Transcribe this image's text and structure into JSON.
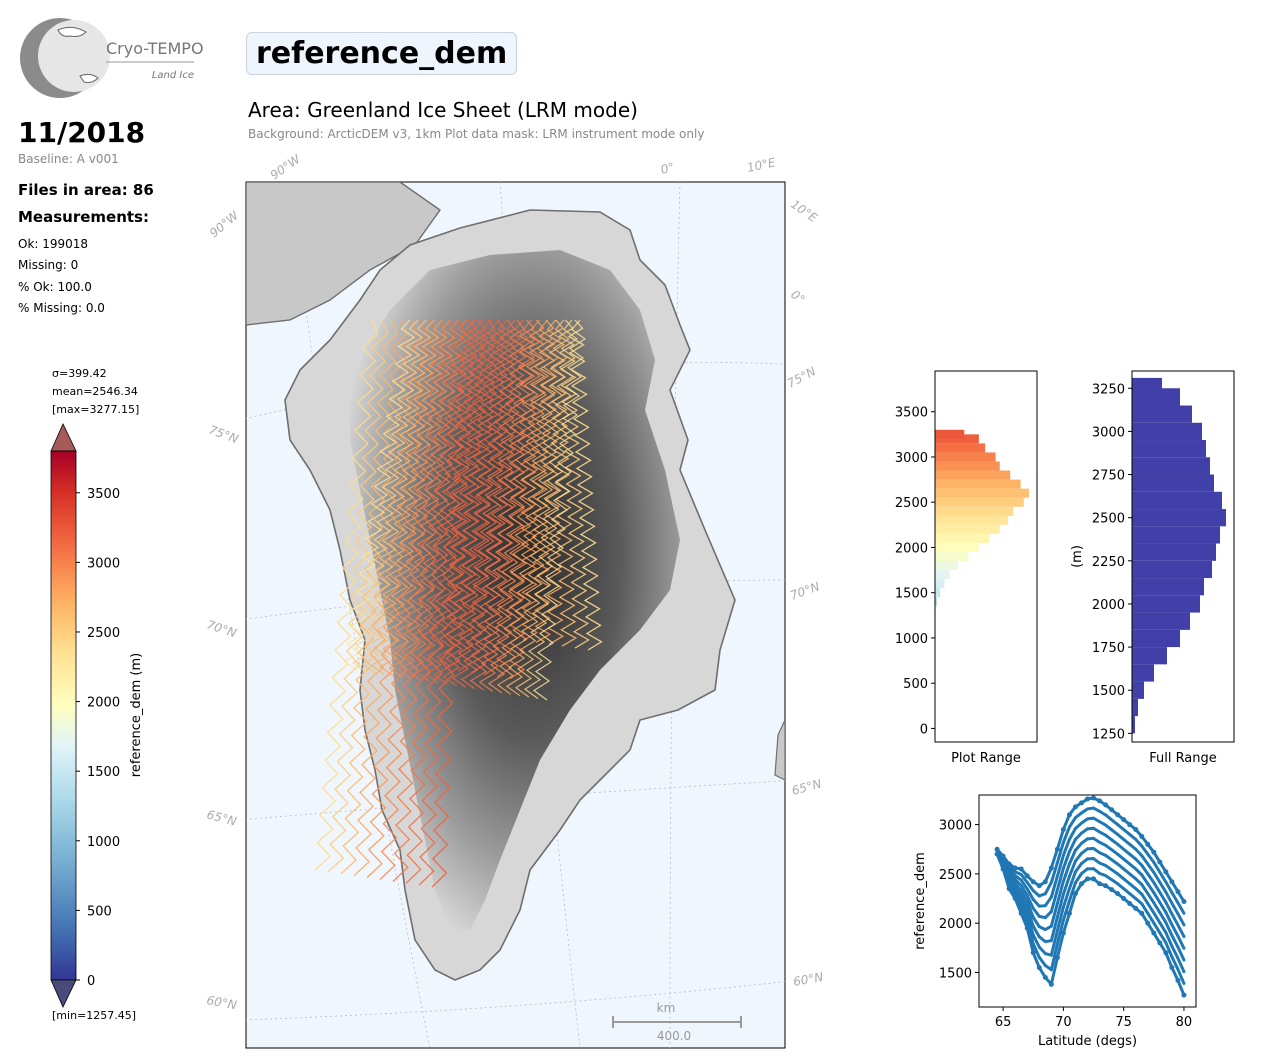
{
  "logo": {
    "name": "Cryo-TEMPO",
    "subtitle": "Land Ice"
  },
  "header": {
    "period": "11/2018",
    "baseline": "Baseline: A v001",
    "parameter": "reference_dem"
  },
  "stats": {
    "files": "Files in area: 86",
    "measurements_title": "Measurements:",
    "ok": "Ok: 199018",
    "missing": "Missing: 0",
    "pct_ok": "% Ok: 100.0",
    "pct_missing": "% Missing: 0.0"
  },
  "area": {
    "title": "Area: Greenland Ice Sheet (LRM mode)",
    "subtitle": "Background: ArcticDEM v3, 1km   Plot data mask: LRM instrument mode only"
  },
  "colorbar": {
    "sigma": "σ=399.42",
    "mean": "mean=2546.34",
    "max": "[max=3277.15]",
    "min": "[min=1257.45]",
    "label": "reference_dem (m)",
    "ticks": [
      "0",
      "500",
      "1000",
      "1500",
      "2000",
      "2500",
      "3000",
      "3500"
    ],
    "range": [
      0,
      3800
    ],
    "colormap": "RdYlBu_r"
  },
  "map": {
    "lat_labels": [
      "75°N",
      "70°N",
      "65°N",
      "60°N",
      "75°N",
      "70°N",
      "65°N",
      "60°N"
    ],
    "lon_labels": [
      "90°W",
      "90°W",
      "0°",
      "10°E",
      "10°E",
      "0°"
    ],
    "scalebar_unit": "km",
    "scalebar_value": "400.0",
    "ocean_color": "#eff6fd",
    "land_color": "#8a8a8a",
    "coast_color": "#6e6e6e"
  },
  "chart_data": [
    {
      "type": "bar",
      "orientation": "horizontal",
      "title": "",
      "xlabel": "Plot Range",
      "ylabel": "",
      "ylim": [
        -150,
        3950
      ],
      "yticks": [
        "0",
        "500",
        "1000",
        "1500",
        "2000",
        "2500",
        "3000",
        "3500"
      ],
      "bin_centers": [
        1400,
        1500,
        1600,
        1700,
        1800,
        1900,
        2000,
        2100,
        2200,
        2300,
        2400,
        2500,
        2600,
        2700,
        2800,
        2900,
        3000,
        3100,
        3200,
        3250
      ],
      "counts": [
        2,
        5,
        9,
        14,
        22,
        32,
        42,
        52,
        62,
        70,
        75,
        85,
        90,
        82,
        72,
        62,
        58,
        48,
        42,
        28
      ]
    },
    {
      "type": "bar",
      "orientation": "horizontal",
      "title": "",
      "xlabel": "Full Range",
      "ylabel": "(m)",
      "ylim": [
        1200,
        3350
      ],
      "yticks": [
        "1250",
        "1500",
        "1750",
        "2000",
        "2250",
        "2500",
        "2750",
        "3000",
        "3250"
      ],
      "bin_centers": [
        1300,
        1400,
        1500,
        1600,
        1700,
        1800,
        1900,
        2000,
        2100,
        2200,
        2300,
        2400,
        2500,
        2600,
        2700,
        2800,
        2900,
        3000,
        3100,
        3200,
        3260
      ],
      "counts": [
        3,
        6,
        12,
        22,
        35,
        48,
        58,
        68,
        72,
        80,
        84,
        88,
        94,
        90,
        82,
        78,
        74,
        70,
        60,
        48,
        30
      ]
    },
    {
      "type": "scatter",
      "title": "",
      "xlabel": "Latitude (degs)",
      "ylabel": "reference_dem",
      "xlim": [
        63,
        81
      ],
      "ylim": [
        1150,
        3300
      ],
      "xticks": [
        "65",
        "70",
        "75",
        "80"
      ],
      "yticks": [
        "1500",
        "2000",
        "2500",
        "3000"
      ],
      "color": "#1f77b4",
      "x": [
        64.5,
        65,
        65.5,
        66,
        66.5,
        67,
        67.5,
        68,
        68.5,
        69,
        69.5,
        70,
        70.5,
        71,
        71.5,
        72,
        72.5,
        73,
        73.5,
        74,
        74.5,
        75,
        75.5,
        76,
        76.5,
        77,
        77.5,
        78,
        78.5,
        79,
        79.5,
        80
      ],
      "upper": [
        2750,
        2680,
        2600,
        2560,
        2550,
        2480,
        2420,
        2380,
        2420,
        2560,
        2750,
        2950,
        3100,
        3180,
        3220,
        3260,
        3270,
        3240,
        3200,
        3150,
        3100,
        3050,
        3000,
        2950,
        2880,
        2800,
        2720,
        2620,
        2520,
        2420,
        2320,
        2220
      ],
      "lower": [
        2700,
        2550,
        2350,
        2250,
        2100,
        1950,
        1700,
        1550,
        1450,
        1380,
        1650,
        1900,
        2100,
        2300,
        2400,
        2450,
        2450,
        2400,
        2380,
        2340,
        2300,
        2250,
        2200,
        2150,
        2100,
        2000,
        1900,
        1800,
        1700,
        1550,
        1420,
        1270
      ]
    }
  ]
}
